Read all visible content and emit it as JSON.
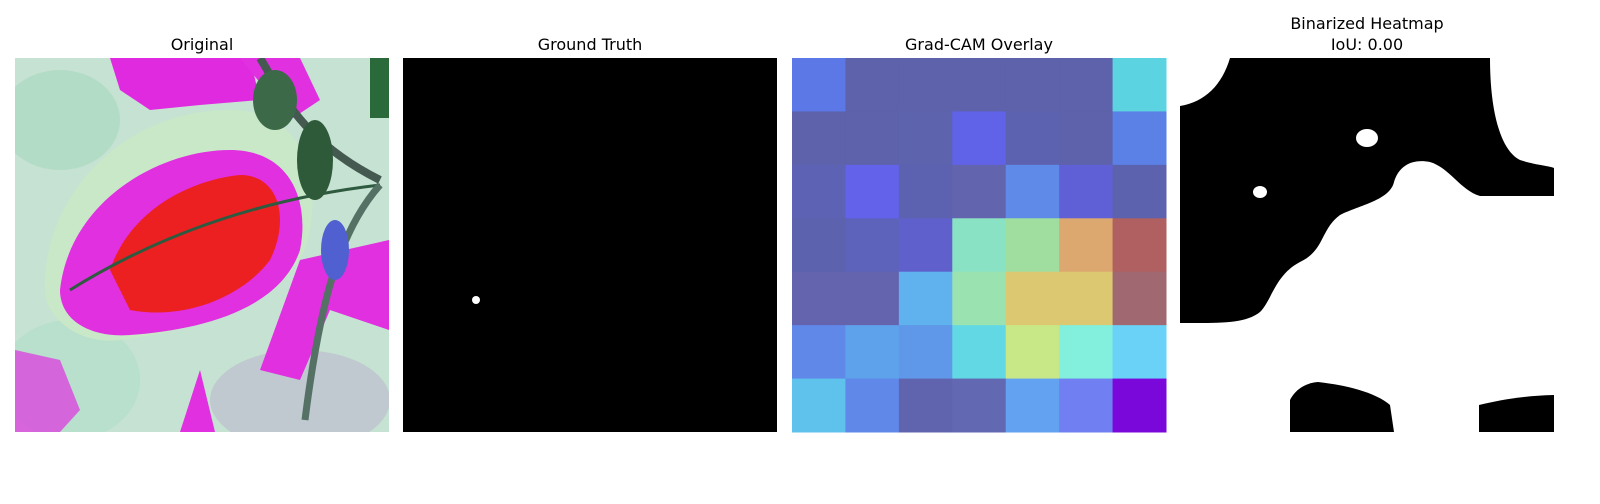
{
  "panels": [
    {
      "title": "Original"
    },
    {
      "title": "Ground Truth"
    },
    {
      "title": "Grad-CAM Overlay"
    },
    {
      "title": "Binarized Heatmap",
      "subtitle": "IoU: 0.00"
    }
  ]
}
